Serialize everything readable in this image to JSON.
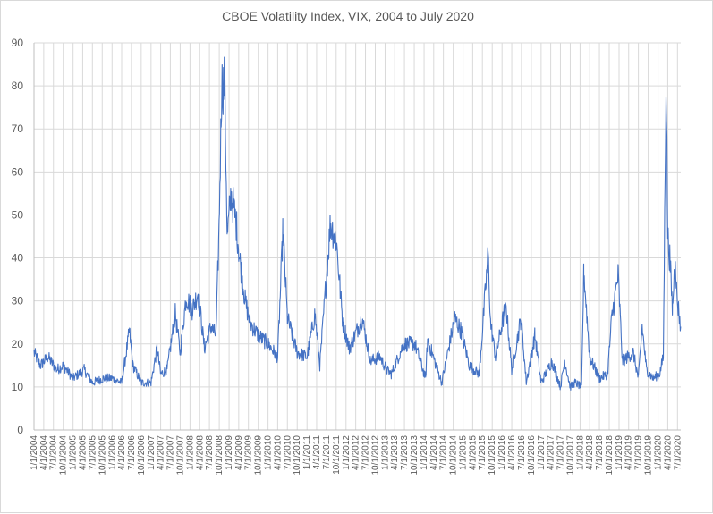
{
  "chart_data": {
    "type": "line",
    "title": "CBOE Volatility Index, VIX, 2004 to July 2020",
    "xlabel": "",
    "ylabel": "",
    "ylim": [
      0,
      90
    ],
    "yticks": [
      0,
      10,
      20,
      30,
      40,
      50,
      60,
      70,
      80,
      90
    ],
    "grid": true,
    "legend": "none",
    "line_color": "#4472c4",
    "x_tick_labels": [
      "1/1/2004",
      "4/1/2004",
      "7/1/2004",
      "10/1/2004",
      "1/1/2005",
      "4/1/2005",
      "7/1/2005",
      "10/1/2005",
      "1/1/2006",
      "4/1/2006",
      "7/1/2006",
      "10/1/2006",
      "1/1/2007",
      "4/1/2007",
      "7/1/2007",
      "10/1/2007",
      "1/1/2008",
      "4/1/2008",
      "7/1/2008",
      "10/1/2008",
      "1/1/2009",
      "4/1/2009",
      "7/1/2009",
      "10/1/2009",
      "1/1/2010",
      "4/1/2010",
      "7/1/2010",
      "10/1/2010",
      "1/1/2011",
      "4/1/2011",
      "7/1/2011",
      "10/1/2011",
      "1/1/2012",
      "4/1/2012",
      "7/1/2012",
      "10/1/2012",
      "1/1/2013",
      "4/1/2013",
      "7/1/2013",
      "10/1/2013",
      "1/1/2014",
      "4/1/2014",
      "7/1/2014",
      "10/1/2014",
      "1/1/2015",
      "4/1/2015",
      "7/1/2015",
      "10/1/2015",
      "1/1/2016",
      "4/1/2016",
      "7/1/2016",
      "10/1/2016",
      "1/1/2017",
      "4/1/2017",
      "7/1/2017",
      "10/1/2017",
      "1/1/2018",
      "4/1/2018",
      "7/1/2018",
      "10/1/2018",
      "1/1/2019",
      "4/1/2019",
      "7/1/2019",
      "10/1/2019",
      "1/1/2020",
      "4/1/2020",
      "7/1/2020"
    ],
    "series": [
      {
        "x": [
          "2004-01-01",
          "2004-03-01",
          "2004-05-10",
          "2004-08-01",
          "2004-10-01",
          "2005-01-01",
          "2005-04-15",
          "2005-07-01",
          "2005-10-15",
          "2006-01-01",
          "2006-04-01",
          "2006-06-13",
          "2006-07-15",
          "2006-10-01",
          "2007-01-01",
          "2007-02-27",
          "2007-04-01",
          "2007-06-01",
          "2007-08-16",
          "2007-10-01",
          "2007-11-26",
          "2008-01-22",
          "2008-03-17",
          "2008-05-15",
          "2008-07-15",
          "2008-09-01",
          "2008-09-29",
          "2008-10-24",
          "2008-11-20",
          "2008-12-15",
          "2009-01-20",
          "2009-03-09",
          "2009-04-15",
          "2009-06-01",
          "2009-07-15",
          "2009-10-01",
          "2010-01-01",
          "2010-04-01",
          "2010-05-20",
          "2010-07-01",
          "2010-10-01",
          "2011-01-01",
          "2011-03-16",
          "2011-05-01",
          "2011-08-08",
          "2011-10-03",
          "2011-12-01",
          "2012-02-01",
          "2012-06-01",
          "2012-08-15",
          "2012-11-15",
          "2013-01-15",
          "2013-03-01",
          "2013-06-24",
          "2013-10-08",
          "2014-01-15",
          "2014-02-03",
          "2014-06-15",
          "2014-10-15",
          "2014-12-15",
          "2015-03-01",
          "2015-06-01",
          "2015-08-24",
          "2015-09-15",
          "2015-11-01",
          "2016-01-20",
          "2016-02-11",
          "2016-04-01",
          "2016-06-27",
          "2016-08-15",
          "2016-11-04",
          "2017-01-01",
          "2017-04-13",
          "2017-07-01",
          "2017-08-10",
          "2017-10-01",
          "2017-11-15",
          "2018-01-15",
          "2018-02-05",
          "2018-04-01",
          "2018-07-01",
          "2018-09-15",
          "2018-10-24",
          "2018-12-24",
          "2019-02-01",
          "2019-05-13",
          "2019-07-01",
          "2019-08-05",
          "2019-09-15",
          "2019-11-15",
          "2020-01-15",
          "2020-02-20",
          "2020-03-16",
          "2020-04-01",
          "2020-04-20",
          "2020-05-15",
          "2020-06-11",
          "2020-06-25",
          "2020-07-31"
        ],
        "y": [
          18,
          15,
          17,
          14,
          15,
          12,
          14,
          11,
          12,
          12,
          11,
          23,
          15,
          11,
          11,
          19,
          13,
          14,
          27,
          18,
          31,
          28,
          32,
          19,
          24,
          22,
          47,
          80,
          81,
          45,
          55,
          48,
          39,
          30,
          25,
          22,
          20,
          17,
          46,
          26,
          18,
          17,
          27,
          15,
          48,
          44,
          25,
          19,
          26,
          16,
          17,
          14,
          13,
          20,
          20,
          12,
          21,
          11,
          26,
          23,
          15,
          13,
          41,
          25,
          17,
          27,
          28,
          14,
          26,
          11,
          22,
          11,
          16,
          10,
          16,
          10,
          11,
          10,
          37,
          17,
          12,
          13,
          26,
          36,
          16,
          18,
          12,
          24,
          14,
          12,
          13,
          17,
          83,
          45,
          40,
          28,
          41,
          31,
          24
        ]
      }
    ]
  }
}
